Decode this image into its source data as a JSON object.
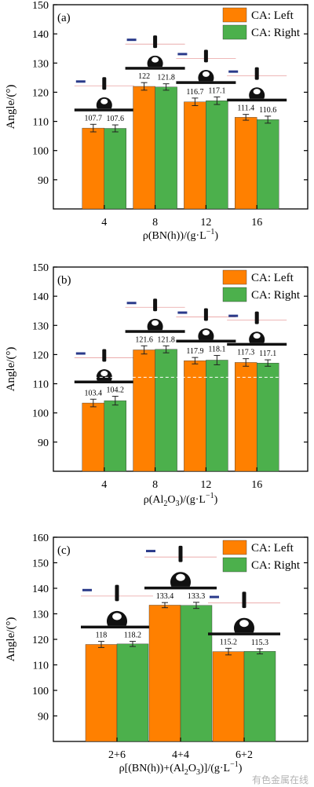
{
  "colors": {
    "left": "#ff8000",
    "right": "#4cb04c",
    "axis": "#000000",
    "droplet": "#111111",
    "watermark": "#9a9a9a"
  },
  "legend": [
    "CA: Left",
    "CA: Right"
  ],
  "ylabel": "Angle/(°)",
  "watermark": "有色金属在线",
  "chart_data": [
    {
      "type": "bar",
      "panel": "(a)",
      "xlabel": "ρ(BN(h))/(g·L⁻¹)",
      "ylabel": "Angle/(°)",
      "categories": [
        "4",
        "8",
        "12",
        "16"
      ],
      "series": [
        {
          "name": "CA: Left",
          "values": [
            107.7,
            122,
            116.7,
            111.4
          ],
          "labels": [
            "107.7",
            "122",
            "116.7",
            "111.4"
          ],
          "errors": [
            1.3,
            1.3,
            1.3,
            1.0
          ]
        },
        {
          "name": "CA: Right",
          "values": [
            107.6,
            121.8,
            117.1,
            110.6
          ],
          "labels": [
            "107.6",
            "121.8",
            "117.1",
            "110.6"
          ],
          "errors": [
            1.2,
            1.1,
            1.3,
            1.2
          ]
        }
      ],
      "ylim": [
        80,
        150
      ],
      "yticks": [
        90,
        100,
        110,
        120,
        130,
        140,
        150
      ],
      "legend_position": "top-right",
      "droplet_insets": true
    },
    {
      "type": "bar",
      "panel": "(b)",
      "xlabel": "ρ(Al2O3)/(g·L⁻¹)",
      "ylabel": "Angle/(°)",
      "categories": [
        "4",
        "8",
        "12",
        "16"
      ],
      "series": [
        {
          "name": "CA: Left",
          "values": [
            103.4,
            121.6,
            117.9,
            117.3
          ],
          "labels": [
            "103.4",
            "121.6",
            "117.9",
            "117.3"
          ],
          "errors": [
            1.3,
            1.4,
            1.1,
            1.3
          ]
        },
        {
          "name": "CA: Right",
          "values": [
            104.2,
            121.8,
            118.1,
            117.1
          ],
          "labels": [
            "104.2",
            "121.8",
            "118.1",
            "117.1"
          ],
          "errors": [
            1.5,
            1.2,
            1.6,
            1.1
          ]
        }
      ],
      "ylim": [
        80,
        150
      ],
      "yticks": [
        90,
        100,
        110,
        120,
        130,
        140,
        150
      ],
      "legend_position": "top-right",
      "droplet_insets": true
    },
    {
      "type": "bar",
      "panel": "(c)",
      "xlabel": "ρ[(BN(h))+(Al2O3)]/(g·L⁻¹)",
      "ylabel": "Angle/(°)",
      "categories": [
        "2+6",
        "4+4",
        "6+2"
      ],
      "series": [
        {
          "name": "CA: Left",
          "values": [
            118,
            133.4,
            115.2
          ],
          "labels": [
            "118",
            "133.4",
            "115.2"
          ],
          "errors": [
            1.2,
            1.0,
            1.3
          ]
        },
        {
          "name": "CA: Right",
          "values": [
            118.2,
            133.3,
            115.3
          ],
          "labels": [
            "118.2",
            "133.3",
            "115.3"
          ],
          "errors": [
            1.0,
            1.2,
            1.0
          ]
        }
      ],
      "ylim": [
        80,
        160
      ],
      "yticks": [
        90,
        100,
        110,
        120,
        130,
        140,
        150,
        160
      ],
      "legend_position": "top-right",
      "droplet_insets": true
    }
  ]
}
